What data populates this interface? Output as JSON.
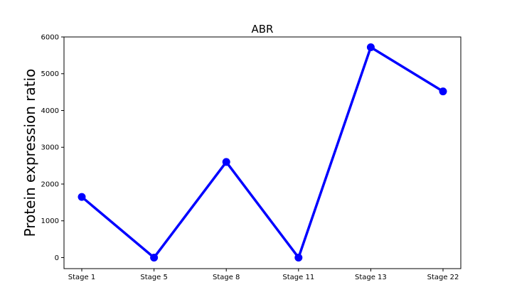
{
  "chart_data": {
    "type": "line",
    "title": "ABR",
    "xlabel": "",
    "ylabel": "Protein expression ratio",
    "categories": [
      "Stage 1",
      "Stage 5",
      "Stage 8",
      "Stage 11",
      "Stage 13",
      "Stage 22"
    ],
    "series": [
      {
        "values": [
          1650,
          0,
          2600,
          0,
          5720,
          4520
        ],
        "color": "#0000ff"
      }
    ],
    "ylim": [
      -300,
      6000
    ],
    "yticks": [
      0,
      1000,
      2000,
      3000,
      4000,
      5000,
      6000
    ],
    "grid": false,
    "legend": "none"
  }
}
